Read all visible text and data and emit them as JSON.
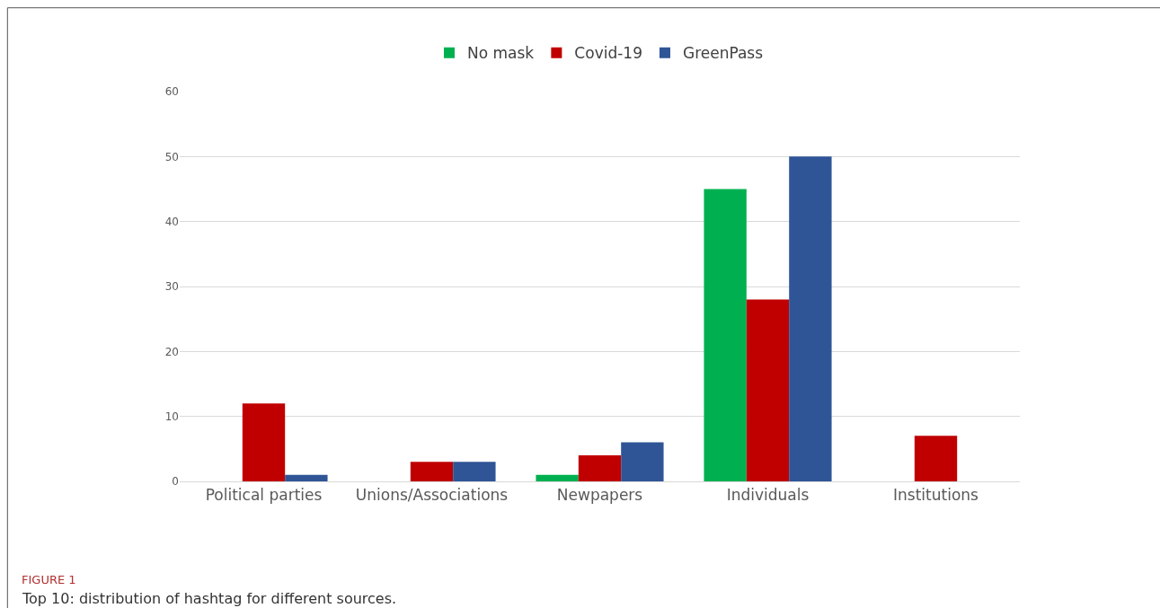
{
  "chart_data": {
    "type": "bar",
    "categories": [
      "Political parties",
      "Unions/Associations",
      "Newpapers",
      "Individuals",
      "Institutions"
    ],
    "series": [
      {
        "name": "No mask",
        "color": "#00b050",
        "values": [
          0,
          0,
          1,
          45,
          0
        ]
      },
      {
        "name": "Covid-19",
        "color": "#c00000",
        "values": [
          12,
          3,
          4,
          28,
          7
        ]
      },
      {
        "name": "GreenPass",
        "color": "#2f5597",
        "values": [
          1,
          3,
          6,
          50,
          0
        ]
      }
    ],
    "ylim": [
      0,
      60
    ],
    "yticks": [
      0,
      10,
      20,
      30,
      40,
      50,
      60
    ],
    "grid": "y",
    "legend": "top",
    "annotations": [
      "FIGURE 1",
      "Top 10: distribution of hashtag for different sources."
    ]
  }
}
